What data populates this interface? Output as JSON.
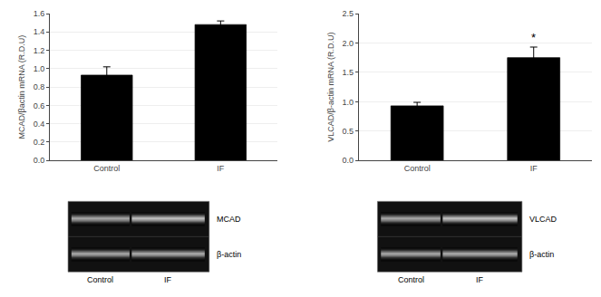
{
  "chart_data": [
    {
      "type": "bar",
      "categories": [
        "Control",
        "IF"
      ],
      "values": [
        0.93,
        1.48
      ],
      "errors": [
        0.09,
        0.04
      ],
      "ylabel": "MCAD/βactin mRNA (R.D.U)",
      "ylim": [
        0.0,
        1.6
      ],
      "yticks": [
        {
          "value": 0.0,
          "label": "0.0"
        },
        0.2,
        0.4,
        0.6,
        0.8,
        {
          "value": 1.0,
          "label": "1.0"
        },
        1.2,
        1.4,
        1.6
      ],
      "color": "#000000"
    },
    {
      "type": "bar",
      "categories": [
        "Control",
        "IF"
      ],
      "values": [
        0.93,
        1.75
      ],
      "errors": [
        0.06,
        0.18
      ],
      "ylabel": "VLCAD/β-actin mRNA (R.D.U)",
      "ylim": [
        0.0,
        2.5
      ],
      "yticks": [
        {
          "value": 0.0,
          "label": "0.0"
        },
        0.5,
        {
          "value": 1.0,
          "label": "1.0"
        },
        1.5,
        {
          "value": 2.0,
          "label": "2.0"
        },
        2.5
      ],
      "color": "#000000",
      "annotations": [
        {
          "text": "*",
          "category": "IF"
        }
      ]
    },
    {
      "type": "gel",
      "categories": [
        "Control",
        "IF"
      ],
      "annotations": [
        "MCAD",
        "β-actin"
      ]
    },
    {
      "type": "gel",
      "categories": [
        "Control",
        "IF"
      ],
      "annotations": [
        "VLCAD",
        "β-actin"
      ]
    }
  ]
}
